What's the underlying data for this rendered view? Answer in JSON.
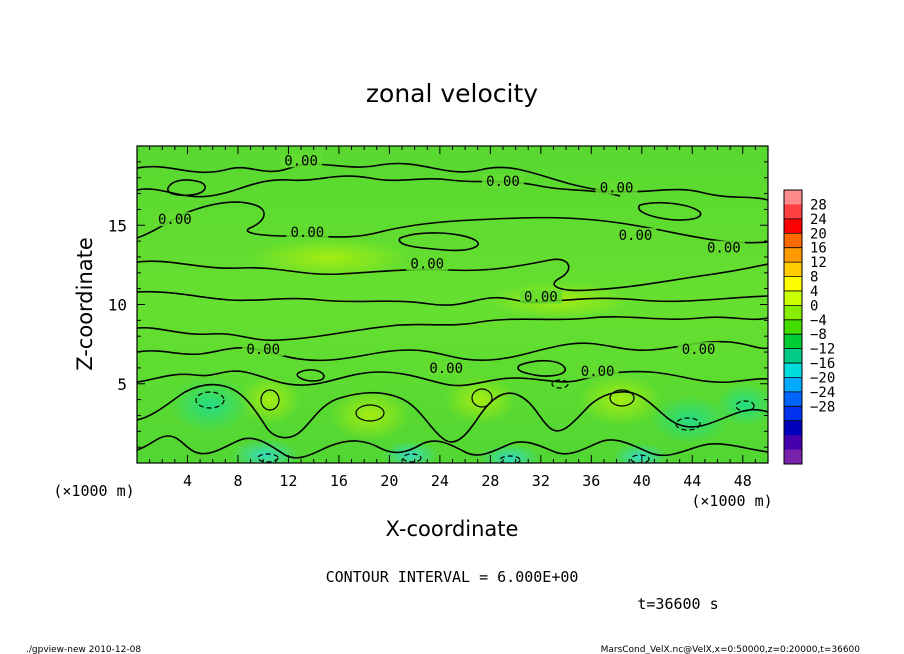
{
  "chart_data": {
    "type": "heatmap",
    "title": "zonal velocity",
    "xlabel": "X-coordinate",
    "ylabel": "Z-coordinate",
    "xunit": "(×1000 m)",
    "yunit": "(×1000 m)",
    "xlim": [
      0,
      50
    ],
    "ylim": [
      0,
      20
    ],
    "xticks": [
      4,
      8,
      12,
      16,
      20,
      24,
      28,
      32,
      36,
      40,
      44,
      48
    ],
    "yticks": [
      5,
      10,
      15
    ],
    "contour_interval_text": "CONTOUR INTERVAL = 6.000E+00",
    "contour_label": "0.00",
    "contour_label_positions": [
      {
        "x": 13.0,
        "z": 18.9
      },
      {
        "x": 29.0,
        "z": 17.6
      },
      {
        "x": 3.0,
        "z": 15.2
      },
      {
        "x": 13.5,
        "z": 14.4
      },
      {
        "x": 38.0,
        "z": 17.2
      },
      {
        "x": 39.5,
        "z": 14.2
      },
      {
        "x": 46.5,
        "z": 13.4
      },
      {
        "x": 23.0,
        "z": 12.4
      },
      {
        "x": 32.0,
        "z": 10.3
      },
      {
        "x": 10.0,
        "z": 7.0
      },
      {
        "x": 44.5,
        "z": 7.0
      },
      {
        "x": 24.5,
        "z": 5.8
      },
      {
        "x": 36.5,
        "z": 5.6
      }
    ],
    "colorbar": {
      "ticks": [
        28,
        24,
        20,
        16,
        12,
        8,
        4,
        0,
        -4,
        -8,
        -12,
        -16,
        -20,
        -24,
        -28
      ],
      "colors": [
        "#ff8c8c",
        "#ff4040",
        "#ff0000",
        "#ff6a00",
        "#ff9900",
        "#ffcc00",
        "#ffff00",
        "#ccff00",
        "#88ee00",
        "#44dd00",
        "#00cc33",
        "#00cc88",
        "#00dddd",
        "#00aaff",
        "#0066ff",
        "#0033ee",
        "#0000bb",
        "#4400aa",
        "#7722aa"
      ]
    },
    "time": "t=36600 s"
  },
  "footer_left": "./gpview-new   2010-12-08",
  "footer_right": "MarsCond_VelX.nc@VelX,x=0:50000,z=0:20000,t=36600"
}
